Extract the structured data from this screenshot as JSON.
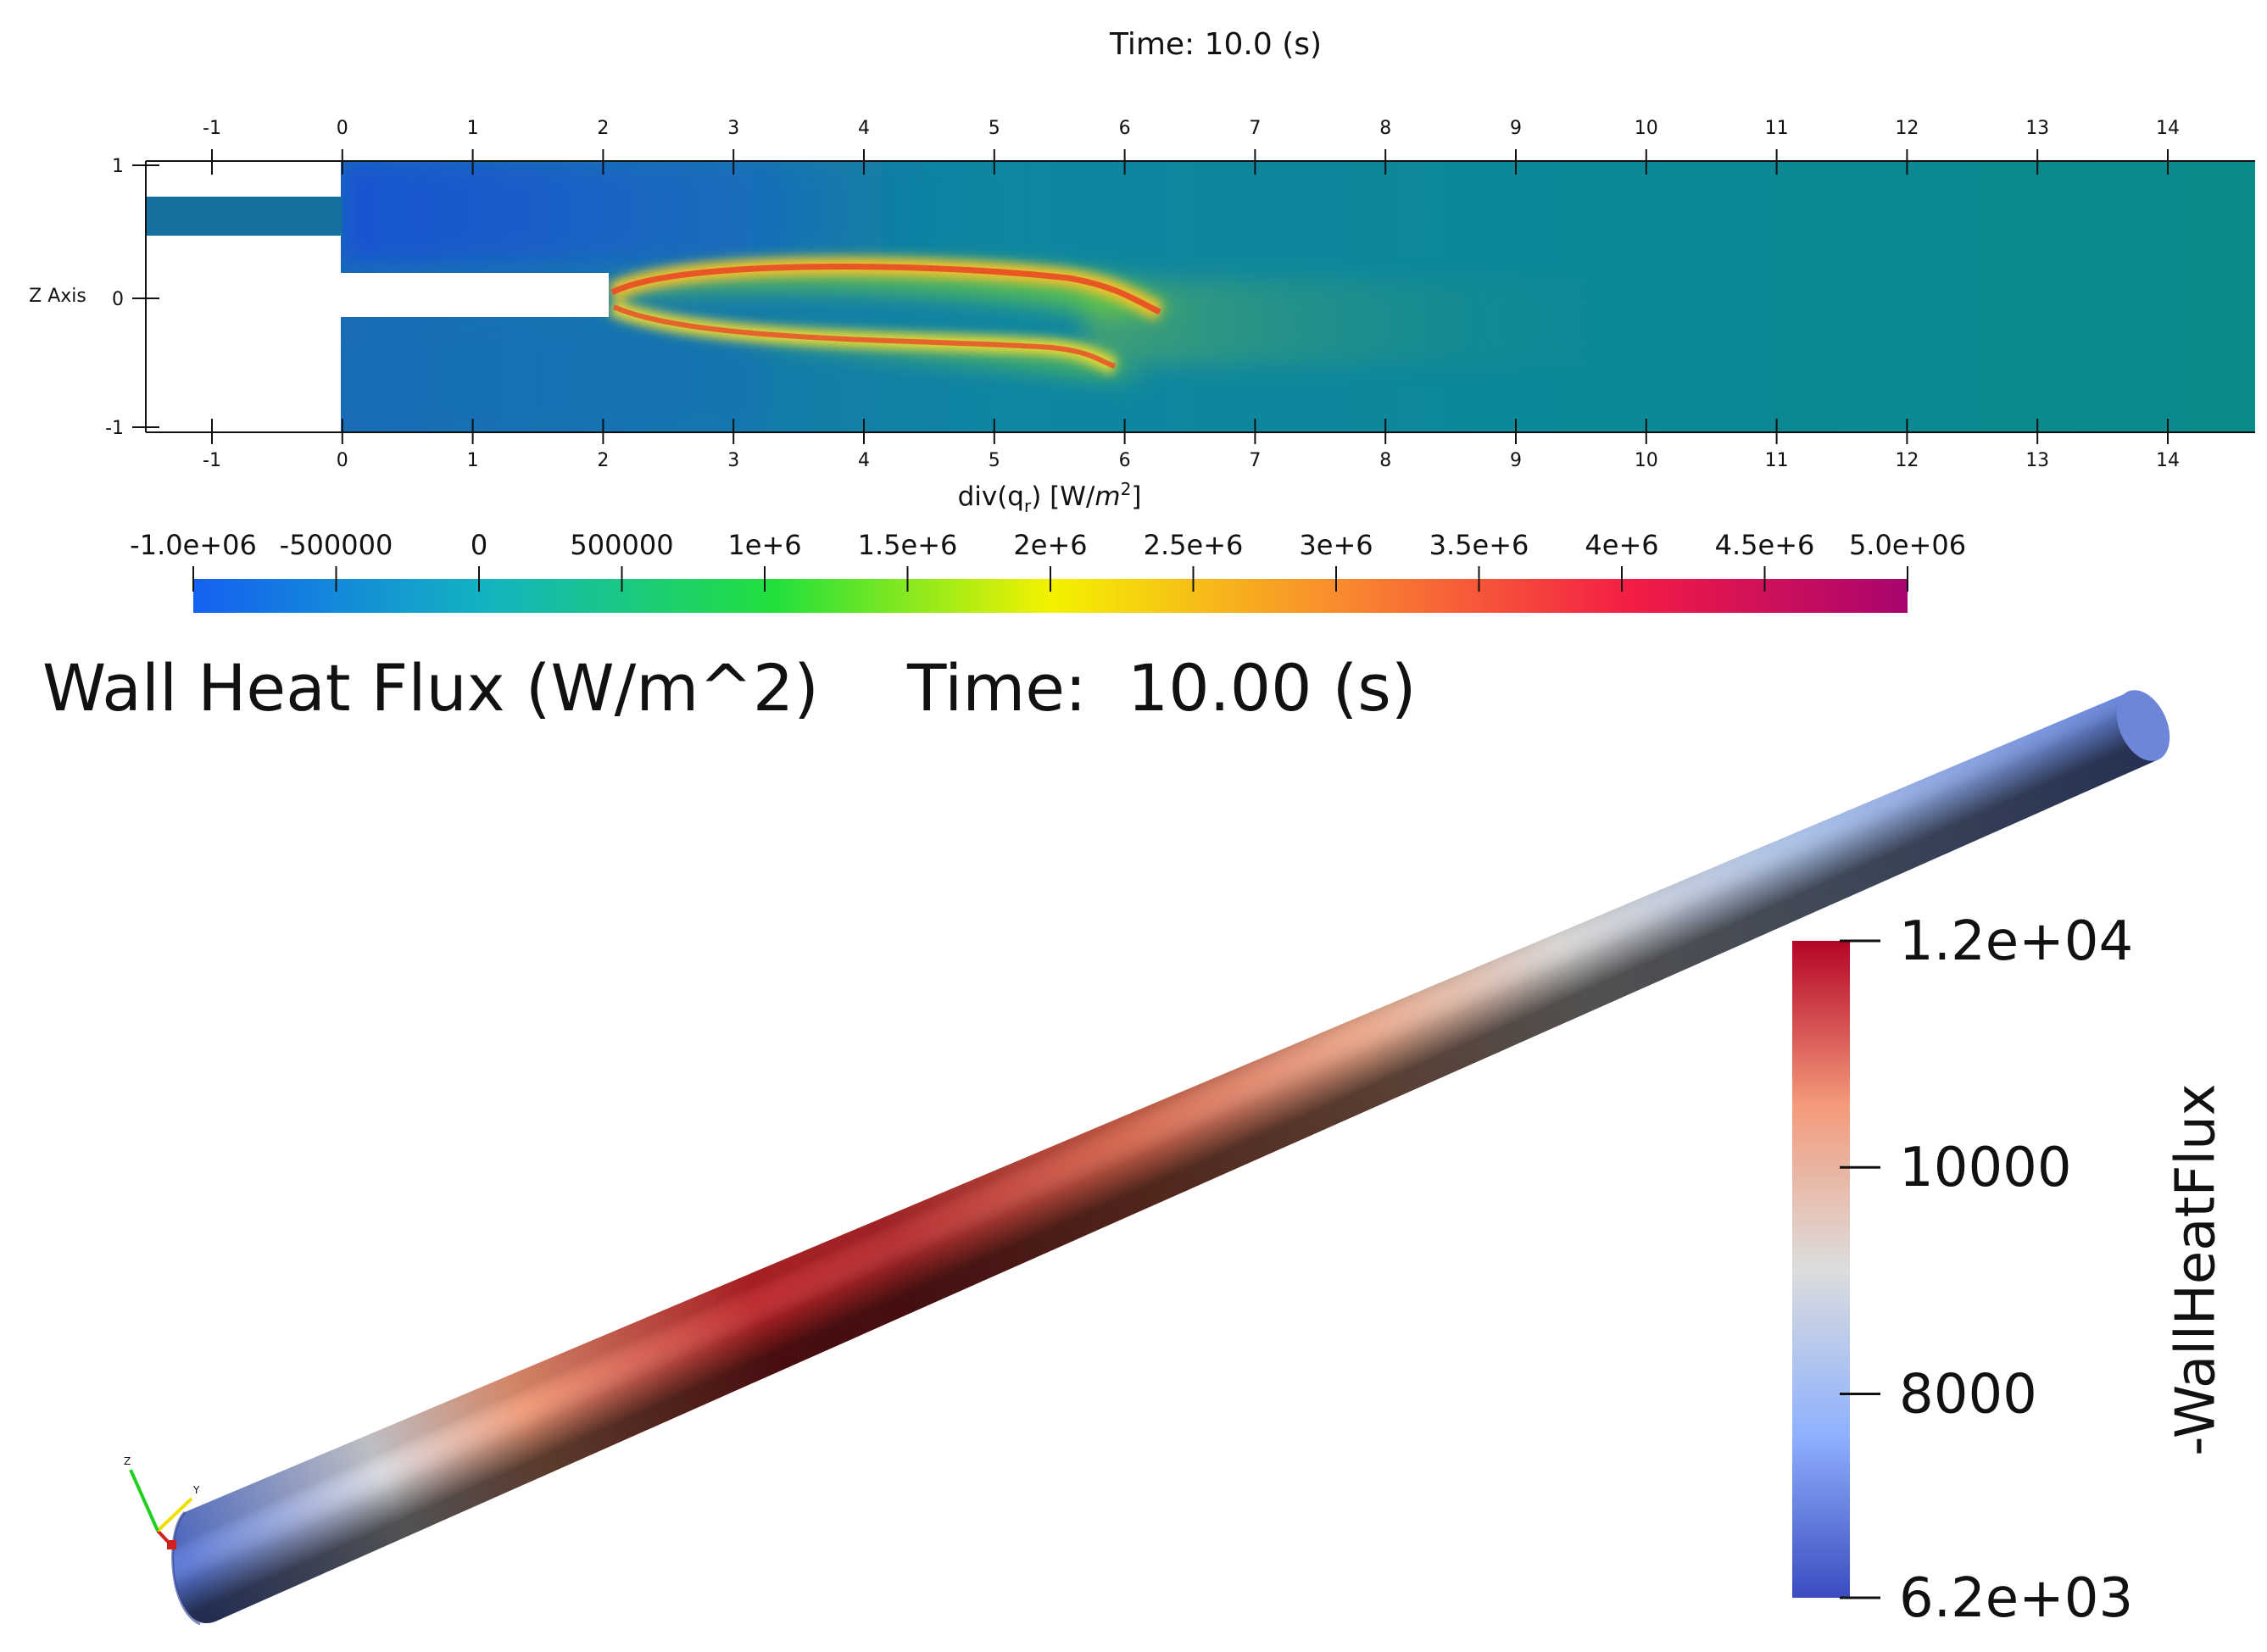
{
  "top_panel": {
    "time_label": "Time: 10.0 (s)",
    "z_axis_label": "Z Axis",
    "x_ticks": [
      "-1",
      "0",
      "1",
      "2",
      "3",
      "4",
      "5",
      "6",
      "7",
      "8",
      "9",
      "10",
      "11",
      "12",
      "13",
      "14"
    ],
    "z_ticks": [
      "1",
      "0",
      "-1"
    ],
    "colorbar": {
      "title_main": "div(q",
      "title_sub": "r",
      "title_rest": ") [W/",
      "title_unit": "m",
      "title_sup": "2",
      "title_end": "]",
      "tick_labels": [
        "-1.0e+06",
        "-500000",
        "0",
        "500000",
        "1e+6",
        "1.5e+6",
        "2e+6",
        "2.5e+6",
        "3e+6",
        "3.5e+6",
        "4e+6",
        "4.5e+6",
        "5.0e+06"
      ],
      "range": [
        -1000000,
        5000000
      ],
      "colors": [
        "#1560f0",
        "#13b3c2",
        "#22e03c",
        "#f4f200",
        "#f98a2f",
        "#f31c45",
        "#a8046f"
      ]
    },
    "field_colors": {
      "background": "#0a8a8a",
      "cold": "#1456c8",
      "hot": "#f07a20",
      "peak": "#e31c2a"
    }
  },
  "bottom_panel": {
    "title": "Wall Heat Flux (W/m^2)",
    "time_label": "Time:  10.00 (s)",
    "colorbar": {
      "label": "-WallHeatFlux",
      "tick_labels": [
        "1.2e+04",
        "10000",
        "8000",
        "6.2e+03"
      ],
      "range": [
        6200,
        12000
      ],
      "colors": [
        "#3b4cc0",
        "#8fb1fe",
        "#dcdddd",
        "#f49a7b",
        "#b40426"
      ]
    },
    "axes_triad": {
      "x_color": "#d02020",
      "y_color": "#f0e000",
      "z_color": "#20d020"
    }
  }
}
